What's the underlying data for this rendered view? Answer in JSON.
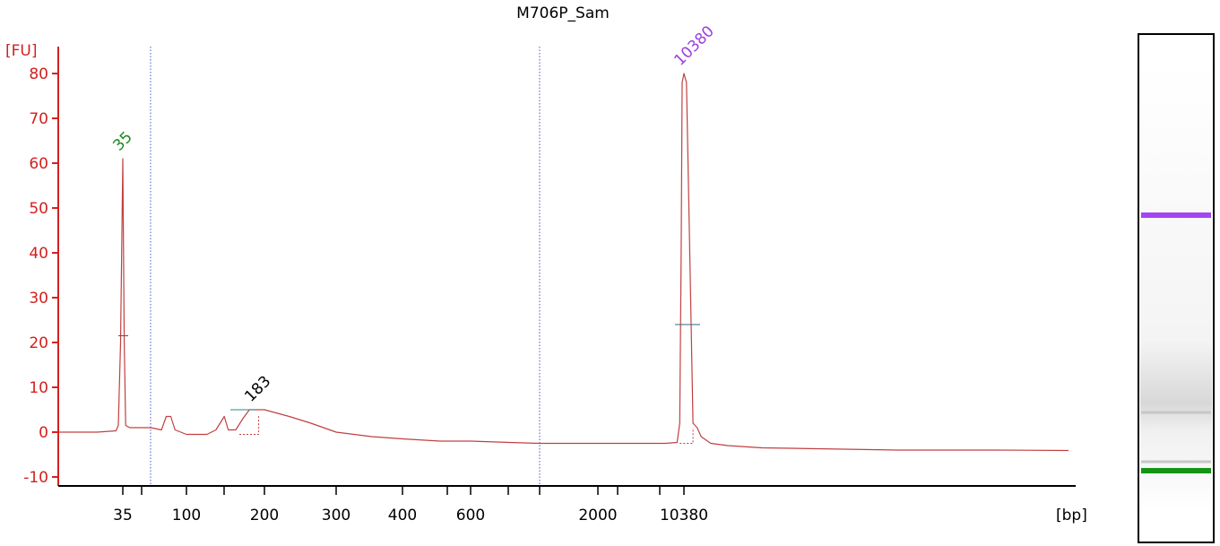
{
  "chart_data": {
    "type": "line",
    "title": "M706P_Sam",
    "ylabel": "[FU]",
    "xlabel": "[bp]",
    "ylim": [
      -12,
      86
    ],
    "y_ticks": [
      -10,
      0,
      10,
      20,
      30,
      40,
      50,
      60,
      70,
      80
    ],
    "x_tick_labels": [
      "35",
      "100",
      "200",
      "300",
      "400",
      "600",
      "2000",
      "10380"
    ],
    "peak_labels": [
      {
        "text": "35",
        "size_bp": 35,
        "fu": 61,
        "color": "#1a8a1a"
      },
      {
        "text": "183",
        "size_bp": 183,
        "fu": 5,
        "color": "#000000"
      },
      {
        "text": "10380",
        "size_bp": 10380,
        "fu": 80,
        "color": "#9b3fe0"
      }
    ],
    "series": [
      {
        "color": "#c04040",
        "points": [
          [
            15,
            0
          ],
          [
            25,
            0
          ],
          [
            32,
            0.3
          ],
          [
            33,
            1.5
          ],
          [
            34,
            20
          ],
          [
            35,
            61
          ],
          [
            36,
            20
          ],
          [
            37,
            1.5
          ],
          [
            40,
            1
          ],
          [
            50,
            1
          ],
          [
            60,
            1
          ],
          [
            70,
            0.5
          ],
          [
            75,
            3.5
          ],
          [
            80,
            3.5
          ],
          [
            85,
            0.5
          ],
          [
            100,
            -0.5
          ],
          [
            120,
            -0.5
          ],
          [
            130,
            0.5
          ],
          [
            140,
            3.5
          ],
          [
            145,
            0.5
          ],
          [
            155,
            0.5
          ],
          [
            165,
            3
          ],
          [
            175,
            5
          ],
          [
            190,
            5
          ],
          [
            200,
            5
          ],
          [
            230,
            3.5
          ],
          [
            260,
            2
          ],
          [
            300,
            0
          ],
          [
            350,
            -1
          ],
          [
            400,
            -1.5
          ],
          [
            500,
            -2
          ],
          [
            600,
            -2
          ],
          [
            800,
            -2.3
          ],
          [
            1000,
            -2.5
          ],
          [
            2000,
            -2.5
          ],
          [
            4000,
            -2.5
          ],
          [
            7000,
            -2.5
          ],
          [
            9000,
            -2.3
          ],
          [
            9500,
            2
          ],
          [
            9800,
            40
          ],
          [
            10000,
            78
          ],
          [
            10380,
            80
          ],
          [
            10600,
            78
          ],
          [
            10900,
            40
          ],
          [
            11200,
            2
          ],
          [
            11600,
            1
          ],
          [
            12000,
            -1
          ],
          [
            13000,
            -2.5
          ],
          [
            15000,
            -3
          ],
          [
            20000,
            -3.5
          ],
          [
            30000,
            -4
          ],
          [
            40000,
            -4
          ],
          [
            50000,
            -4.1
          ]
        ]
      }
    ],
    "boundary_markers_bp": [
      60,
      1000
    ],
    "gel_bands": [
      {
        "position": 0.34,
        "color": "#a545f2",
        "strength": 1
      },
      {
        "position": 0.78,
        "color": "#c0c0c0",
        "strength": 0.5
      },
      {
        "position": 0.89,
        "color": "#bbbbbb",
        "strength": 0.4
      },
      {
        "position": 0.91,
        "color": "#149414",
        "strength": 1
      }
    ]
  }
}
